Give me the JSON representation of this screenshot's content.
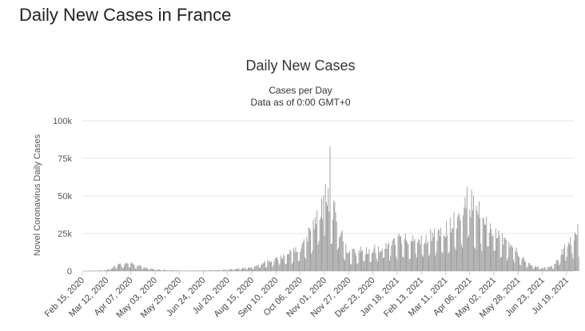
{
  "page": {
    "title": "Daily New Cases in France"
  },
  "chart_data": {
    "type": "bar",
    "title": "Daily New Cases",
    "subtitle": "Cases per Day",
    "subtitle2": "Data as of 0:00 GMT+0",
    "ylabel": "Novel Coronavirus Daily Cases",
    "xlabel": "",
    "ylim": [
      0,
      100000
    ],
    "y_ticks": [
      {
        "value": 0,
        "label": "0"
      },
      {
        "value": 25000,
        "label": "25k"
      },
      {
        "value": 50000,
        "label": "50k"
      },
      {
        "value": 75000,
        "label": "75k"
      },
      {
        "value": 100000,
        "label": "100k"
      }
    ],
    "x_tick_labels": [
      "Feb 15, 2020",
      "Mar 12, 2020",
      "Apr 07, 2020",
      "May 03, 2020",
      "May 29, 2020",
      "Jun 24, 2020",
      "Jul 20, 2020",
      "Aug 15, 2020",
      "Sep 10, 2020",
      "Oct 06, 2020",
      "Nov 01, 2020",
      "Nov 27, 2020",
      "Dec 23, 2020",
      "Jan 18, 2021",
      "Feb 13, 2021",
      "Mar 11, 2021",
      "Apr 06, 2021",
      "May 02, 2021",
      "May 28, 2021",
      "Jun 23, 2021",
      "Jul 19, 2021"
    ],
    "series": [
      {
        "color": "#999999",
        "keypoints": [
          [
            "Feb 15, 2020",
            0
          ],
          [
            "Mar 12, 2020",
            500
          ],
          [
            "Mar 25, 2020",
            4000
          ],
          [
            "Apr 07, 2020",
            5000
          ],
          [
            "Apr 20, 2020",
            2500
          ],
          [
            "May 03, 2020",
            1000
          ],
          [
            "May 29, 2020",
            300
          ],
          [
            "Jun 24, 2020",
            400
          ],
          [
            "Jul 20, 2020",
            800
          ],
          [
            "Aug 15, 2020",
            2500
          ],
          [
            "Sep 10, 2020",
            8000
          ],
          [
            "Oct 06, 2020",
            15000
          ],
          [
            "Oct 20, 2020",
            28000
          ],
          [
            "Nov 01, 2020",
            45000
          ],
          [
            "Nov 07, 2020",
            50000
          ],
          [
            "Nov 14, 2020",
            32000
          ],
          [
            "Nov 27, 2020",
            12000
          ],
          [
            "Dec 23, 2020",
            14000
          ],
          [
            "Jan 18, 2021",
            20000
          ],
          [
            "Feb 13, 2021",
            21000
          ],
          [
            "Mar 11, 2021",
            26000
          ],
          [
            "Mar 25, 2021",
            35000
          ],
          [
            "Apr 06, 2021",
            45000
          ],
          [
            "Apr 15, 2021",
            38000
          ],
          [
            "May 02, 2021",
            25000
          ],
          [
            "May 28, 2021",
            12000
          ],
          [
            "Jun 10, 2021",
            4000
          ],
          [
            "Jun 23, 2021",
            1800
          ],
          [
            "Jul 05, 2021",
            3500
          ],
          [
            "Jul 19, 2021",
            17000
          ],
          [
            "Aug 01, 2021",
            26000
          ]
        ],
        "spikes": [
          [
            "Nov 02, 2020",
            58000
          ],
          [
            "Nov 07, 2020",
            83000
          ],
          [
            "Apr 03, 2021",
            56000
          ],
          [
            "Apr 08, 2021",
            54000
          ]
        ]
      }
    ]
  }
}
